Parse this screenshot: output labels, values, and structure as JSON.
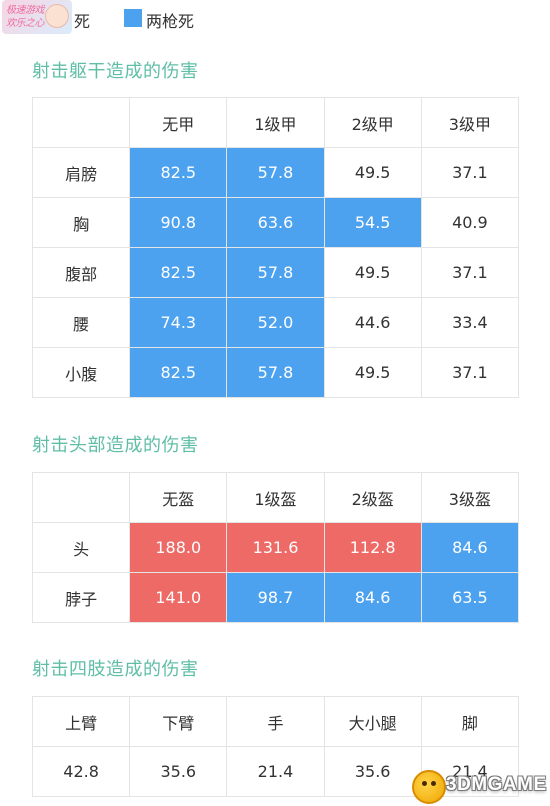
{
  "colors": {
    "two_shot_blue": "#4da2f0",
    "one_shot_red": "#ee6a67",
    "title_green": "#5fbea5"
  },
  "legend": {
    "logo_text": "极速游戏 欢乐之心",
    "item1_label": "死",
    "item2_label": "两枪死",
    "item2_color": "#4da2f0"
  },
  "torso": {
    "title": "射击躯干造成的伤害",
    "headers": [
      "",
      "无甲",
      "1级甲",
      "2级甲",
      "3级甲"
    ],
    "rows": [
      {
        "part": "肩膀",
        "values": [
          "82.5",
          "57.8",
          "49.5",
          "37.1"
        ],
        "hl": [
          "blue",
          "blue",
          "",
          ""
        ]
      },
      {
        "part": "胸",
        "values": [
          "90.8",
          "63.6",
          "54.5",
          "40.9"
        ],
        "hl": [
          "blue",
          "blue",
          "blue",
          ""
        ]
      },
      {
        "part": "腹部",
        "values": [
          "82.5",
          "57.8",
          "49.5",
          "37.1"
        ],
        "hl": [
          "blue",
          "blue",
          "",
          ""
        ]
      },
      {
        "part": "腰",
        "values": [
          "74.3",
          "52.0",
          "44.6",
          "33.4"
        ],
        "hl": [
          "blue",
          "blue",
          "",
          ""
        ]
      },
      {
        "part": "小腹",
        "values": [
          "82.5",
          "57.8",
          "49.5",
          "37.1"
        ],
        "hl": [
          "blue",
          "blue",
          "",
          ""
        ]
      }
    ]
  },
  "head": {
    "title": "射击头部造成的伤害",
    "headers": [
      "",
      "无盔",
      "1级盔",
      "2级盔",
      "3级盔"
    ],
    "rows": [
      {
        "part": "头",
        "values": [
          "188.0",
          "131.6",
          "112.8",
          "84.6"
        ],
        "hl": [
          "red",
          "red",
          "red",
          "blue"
        ]
      },
      {
        "part": "脖子",
        "values": [
          "141.0",
          "98.7",
          "84.6",
          "63.5"
        ],
        "hl": [
          "red",
          "blue",
          "blue",
          "blue"
        ]
      }
    ]
  },
  "limbs": {
    "title": "射击四肢造成的伤害",
    "headers": [
      "上臂",
      "下臂",
      "手",
      "大小腿",
      "脚"
    ],
    "values": [
      "42.8",
      "35.6",
      "21.4",
      "35.6",
      "21.4"
    ]
  },
  "watermark": {
    "text": "3DMGAME"
  }
}
